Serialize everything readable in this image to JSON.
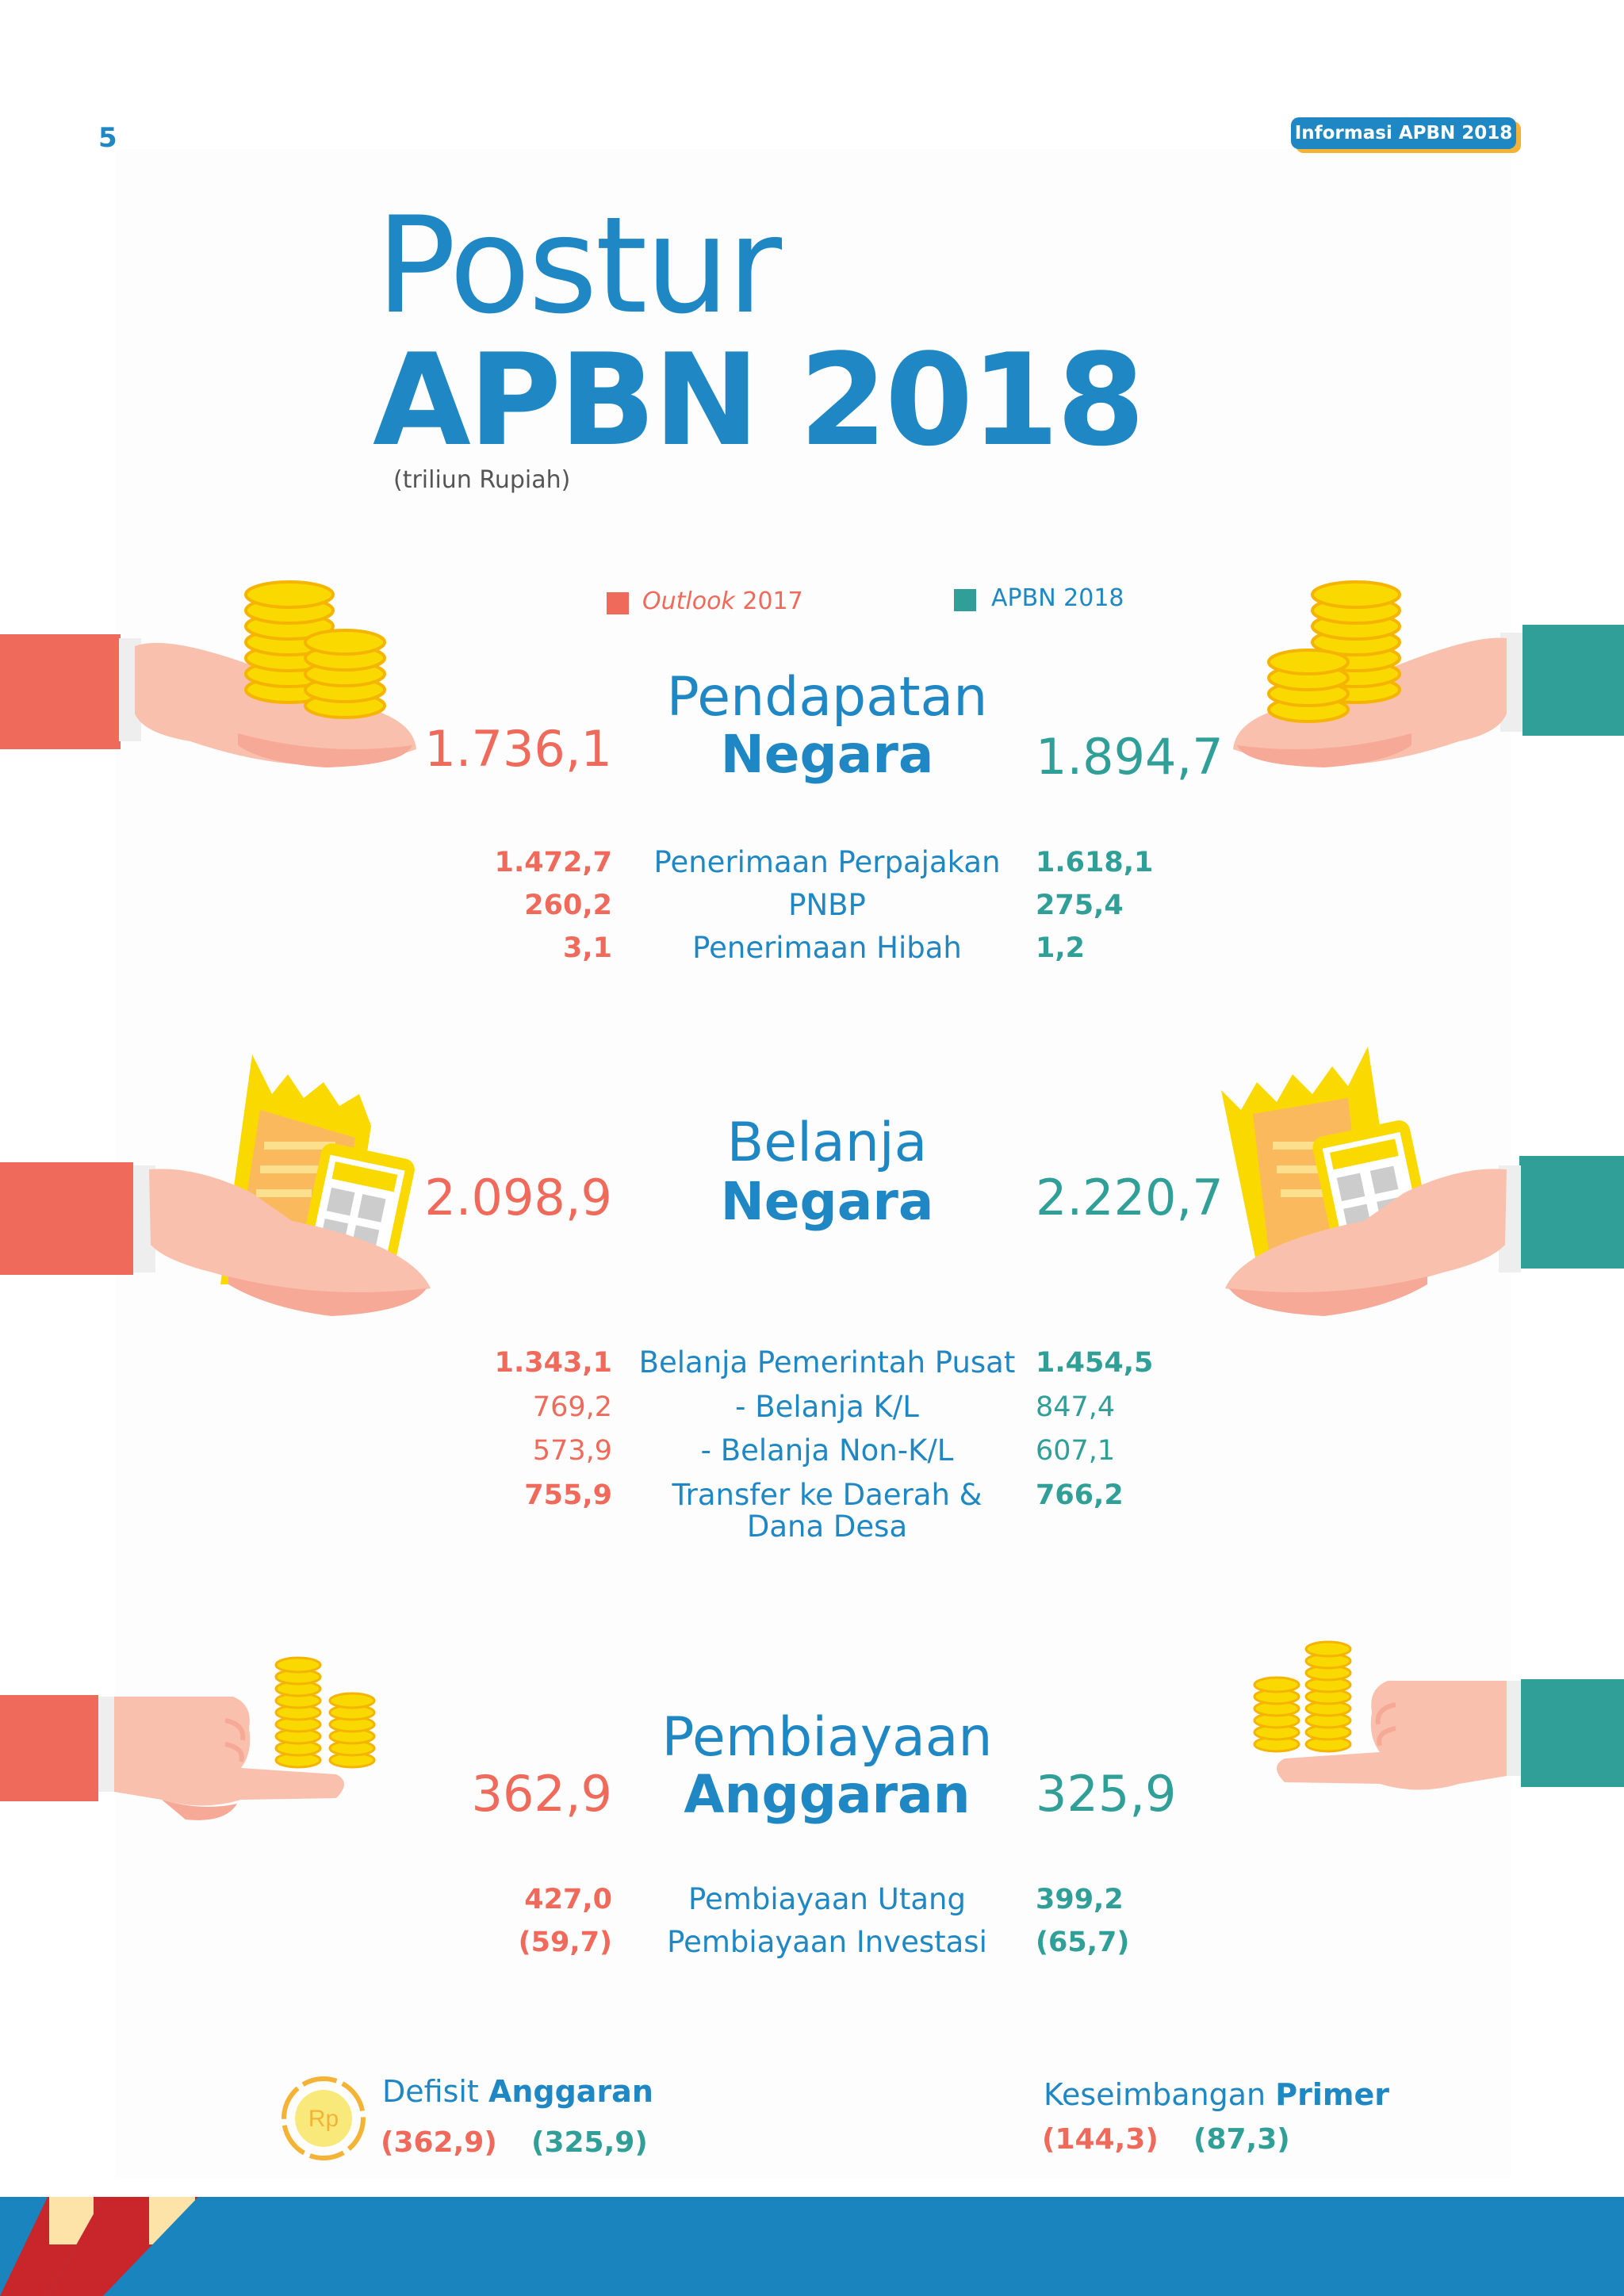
{
  "page_number": "5",
  "badge": "Informasi APBN 2018",
  "title": {
    "line1": "Postur",
    "line2": "APBN 2018",
    "unit": "(triliun Rupiah)"
  },
  "legend": {
    "outlook_italic": "Outlook",
    "outlook_year": "2017",
    "apbn": "APBN 2018"
  },
  "colors": {
    "outlook": "#ef6a5a",
    "apbn": "#2f9f98",
    "heading": "#1f88c4"
  },
  "pendapatan": {
    "title_a": "Pendapatan",
    "title_b": "Negara",
    "total_outlook": "1.736,1",
    "total_apbn": "1.894,7",
    "rows": [
      {
        "label": "Penerimaan Perpajakan",
        "outlook": "1.472,7",
        "apbn": "1.618,1"
      },
      {
        "label": "PNBP",
        "outlook": "260,2",
        "apbn": "275,4"
      },
      {
        "label": "Penerimaan Hibah",
        "outlook": "3,1",
        "apbn": "1,2"
      }
    ]
  },
  "belanja": {
    "title_a": "Belanja",
    "title_b": "Negara",
    "total_outlook": "2.098,9",
    "total_apbn": "2.220,7",
    "rows": [
      {
        "label": "Belanja Pemerintah Pusat",
        "outlook": "1.343,1",
        "apbn": "1.454,5"
      },
      {
        "label": "- Belanja K/L",
        "outlook": "769,2",
        "apbn": "847,4"
      },
      {
        "label": "- Belanja Non-K/L",
        "outlook": "573,9",
        "apbn": "607,1"
      },
      {
        "label": "Transfer ke Daerah &",
        "label2": "Dana Desa",
        "outlook": "755,9",
        "apbn": "766,2"
      }
    ]
  },
  "pembiayaan": {
    "title_a": "Pembiayaan",
    "title_b": "Anggaran",
    "total_outlook": "362,9",
    "total_apbn": "325,9",
    "rows": [
      {
        "label": "Pembiayaan Utang",
        "outlook": "427,0",
        "apbn": "399,2"
      },
      {
        "label": "Pembiayaan Investasi",
        "outlook": "(59,7)",
        "apbn": "(65,7)"
      }
    ]
  },
  "defisit": {
    "label_a": "Defisit",
    "label_b": "Anggaran",
    "outlook": "(362,9)",
    "apbn": "(325,9)",
    "icon_text": "Rp"
  },
  "keseimbangan": {
    "label_a": "Keseimbangan",
    "label_b": "Primer",
    "outlook": "(144,3)",
    "apbn": "(87,3)"
  }
}
